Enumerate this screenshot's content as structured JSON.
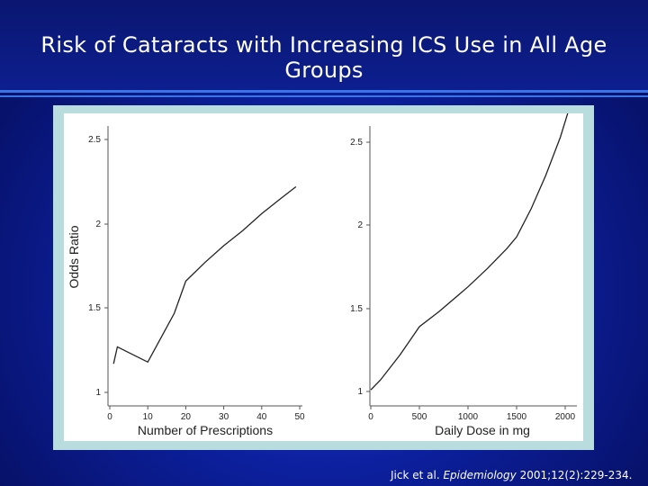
{
  "slide": {
    "title": "Risk of Cataracts with Increasing ICS Use in All Age Groups",
    "citation_prefix": "Jick et al. ",
    "citation_journal": "Epidemiology",
    "citation_suffix": " 2001;12(2):229-234."
  },
  "chart_data": [
    {
      "type": "line",
      "title": "",
      "xlabel": "Number of Prescriptions",
      "ylabel": "Odds Ratio",
      "xlim": [
        0,
        50
      ],
      "ylim": [
        1,
        2.5
      ],
      "xticks": [
        "0",
        "10",
        "20",
        "30",
        "40",
        "50"
      ],
      "yticks": [
        "1",
        "1.5",
        "2",
        "2.5"
      ],
      "grid": false,
      "series": [
        {
          "x": [
            1,
            2,
            10,
            17,
            20,
            25,
            30,
            35,
            40,
            45,
            49
          ],
          "y": [
            1.17,
            1.27,
            1.18,
            1.47,
            1.66,
            1.77,
            1.87,
            1.96,
            2.06,
            2.15,
            2.22
          ]
        }
      ]
    },
    {
      "type": "line",
      "title": "",
      "xlabel": "Daily Dose in mg",
      "ylabel": "",
      "xlim": [
        0,
        2000
      ],
      "ylim": [
        1,
        2.5
      ],
      "xticks": [
        "0",
        "500",
        "1000",
        "1500",
        "2000"
      ],
      "yticks": [
        "1",
        "1.5",
        "2",
        "2.5"
      ],
      "grid": false,
      "series": [
        {
          "x": [
            0,
            100,
            300,
            500,
            700,
            1000,
            1200,
            1400,
            1500,
            1650,
            1800,
            1950,
            2050
          ],
          "y": [
            1.01,
            1.07,
            1.22,
            1.39,
            1.48,
            1.63,
            1.74,
            1.86,
            1.93,
            2.1,
            2.3,
            2.53,
            2.72
          ]
        }
      ]
    }
  ]
}
